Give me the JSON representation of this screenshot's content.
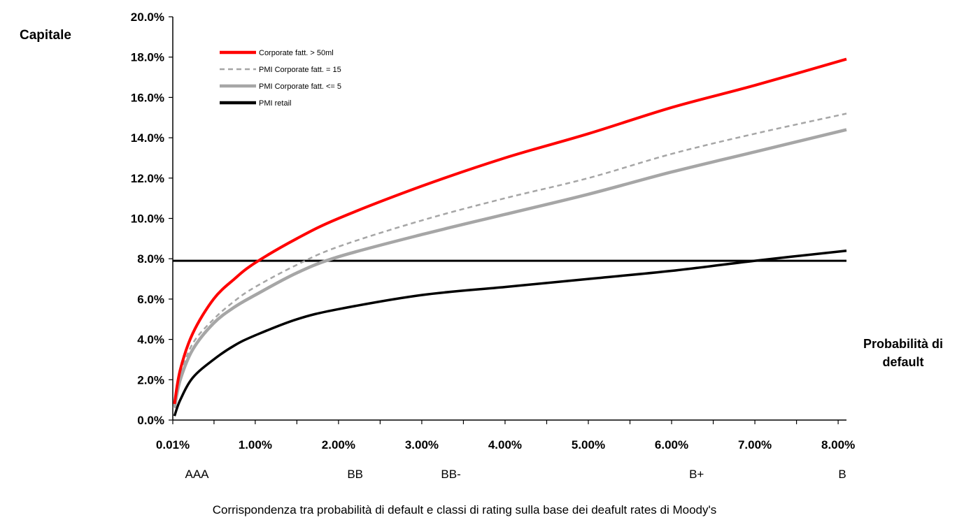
{
  "chart_data": {
    "type": "line",
    "ylabel": "Capitale",
    "xlabel_lines": [
      "Probabilità di",
      "default"
    ],
    "caption": "Corrispondenza tra probabilità di default e classi di rating sulla base dei deafult rates di Moody's",
    "y_ticks": [
      "0.0%",
      "2.0%",
      "4.0%",
      "6.0%",
      "8.0%",
      "10.0%",
      "12.0%",
      "14.0%",
      "16.0%",
      "18.0%",
      "20.0%"
    ],
    "x_ticks": [
      "0.01%",
      "1.00%",
      "2.00%",
      "3.00%",
      "4.00%",
      "5.00%",
      "6.00%",
      "7.00%",
      "8.00%"
    ],
    "xlim": [
      0.01,
      8.1
    ],
    "ylim": [
      0,
      20
    ],
    "ratings": [
      {
        "label": "AAA",
        "x": 0.3
      },
      {
        "label": "BB",
        "x": 2.2
      },
      {
        "label": "BB-",
        "x": 3.35
      },
      {
        "label": "B+",
        "x": 6.3
      },
      {
        "label": "B",
        "x": 8.05
      }
    ],
    "reference_line": {
      "y": 7.9
    },
    "legend": {
      "position": "top-left"
    },
    "series": [
      {
        "name": "Corporate fatt. > 50ml",
        "color": "#ff0000",
        "style": "solid",
        "points": [
          [
            0.03,
            0.8
          ],
          [
            0.1,
            2.5
          ],
          [
            0.25,
            4.3
          ],
          [
            0.5,
            6.0
          ],
          [
            0.75,
            7.0
          ],
          [
            1.0,
            7.8
          ],
          [
            1.5,
            9.0
          ],
          [
            2.0,
            10.0
          ],
          [
            3.0,
            11.6
          ],
          [
            4.0,
            13.0
          ],
          [
            5.0,
            14.2
          ],
          [
            6.0,
            15.5
          ],
          [
            7.0,
            16.6
          ],
          [
            8.1,
            17.9
          ]
        ]
      },
      {
        "name": "PMI Corporate fatt. = 15",
        "color": "#a6a6a6",
        "style": "dashed",
        "points": [
          [
            0.03,
            0.7
          ],
          [
            0.1,
            2.2
          ],
          [
            0.25,
            3.8
          ],
          [
            0.5,
            5.0
          ],
          [
            0.75,
            5.9
          ],
          [
            1.0,
            6.6
          ],
          [
            1.5,
            7.7
          ],
          [
            2.0,
            8.6
          ],
          [
            3.0,
            9.9
          ],
          [
            4.0,
            11.0
          ],
          [
            5.0,
            12.0
          ],
          [
            6.0,
            13.2
          ],
          [
            7.0,
            14.2
          ],
          [
            8.1,
            15.2
          ]
        ]
      },
      {
        "name": "PMI Corporate fatt. <= 5",
        "color": "#a6a6a6",
        "style": "solid",
        "points": [
          [
            0.03,
            0.6
          ],
          [
            0.1,
            2.0
          ],
          [
            0.25,
            3.5
          ],
          [
            0.5,
            4.8
          ],
          [
            0.75,
            5.6
          ],
          [
            1.0,
            6.2
          ],
          [
            1.5,
            7.3
          ],
          [
            2.0,
            8.1
          ],
          [
            3.0,
            9.2
          ],
          [
            4.0,
            10.2
          ],
          [
            5.0,
            11.2
          ],
          [
            6.0,
            12.3
          ],
          [
            7.0,
            13.3
          ],
          [
            8.1,
            14.4
          ]
        ]
      },
      {
        "name": "PMI retail",
        "color": "#000000",
        "style": "solid",
        "points": [
          [
            0.03,
            0.2
          ],
          [
            0.1,
            1.0
          ],
          [
            0.25,
            2.1
          ],
          [
            0.5,
            3.0
          ],
          [
            0.75,
            3.7
          ],
          [
            1.0,
            4.2
          ],
          [
            1.5,
            5.0
          ],
          [
            2.0,
            5.5
          ],
          [
            3.0,
            6.2
          ],
          [
            4.0,
            6.6
          ],
          [
            5.0,
            7.0
          ],
          [
            6.0,
            7.4
          ],
          [
            7.0,
            7.9
          ],
          [
            8.1,
            8.4
          ]
        ]
      }
    ]
  }
}
